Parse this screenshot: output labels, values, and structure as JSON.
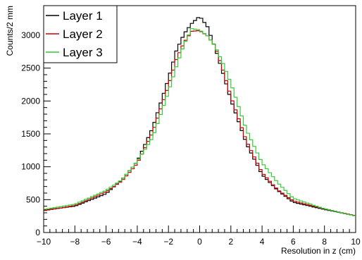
{
  "chart_data": {
    "type": "line",
    "title": "",
    "xlabel": "Resolution in z (cm)",
    "ylabel": "Counts/2 mm",
    "xlim": [
      -10,
      10
    ],
    "ylim": [
      0,
      3450
    ],
    "x_ticks": [
      "−10",
      "−8",
      "−6",
      "−4",
      "−2",
      "0",
      "2",
      "4",
      "6",
      "8",
      "10"
    ],
    "y_ticks": [
      "0",
      "500",
      "1000",
      "1500",
      "2000",
      "2500",
      "3000"
    ],
    "grid": false,
    "legend_position": "top-left",
    "x": [
      -10,
      -8,
      -6,
      -5,
      -4,
      -3,
      -2,
      -1.5,
      -1,
      -0.5,
      0,
      0.5,
      1,
      1.5,
      2,
      3,
      4,
      5,
      6,
      8,
      10
    ],
    "series": [
      {
        "name": "Layer 1",
        "color": "#000000",
        "values": [
          340,
          400,
          590,
          800,
          1080,
          1600,
          2340,
          2760,
          3020,
          3180,
          3290,
          3130,
          2800,
          2420,
          2020,
          1350,
          880,
          640,
          460,
          350,
          255
        ]
      },
      {
        "name": "Layer 2",
        "color": "#cc0000",
        "values": [
          330,
          410,
          620,
          780,
          1050,
          1530,
          2230,
          2630,
          2890,
          3060,
          3070,
          2990,
          2830,
          2470,
          2070,
          1390,
          910,
          650,
          480,
          360,
          255
        ]
      },
      {
        "name": "Layer 3",
        "color": "#33cc33",
        "values": [
          350,
          430,
          640,
          800,
          1080,
          1450,
          2140,
          2520,
          2860,
          3100,
          3080,
          2990,
          2830,
          2570,
          2270,
          1560,
          1060,
          760,
          520,
          360,
          250
        ]
      }
    ]
  }
}
